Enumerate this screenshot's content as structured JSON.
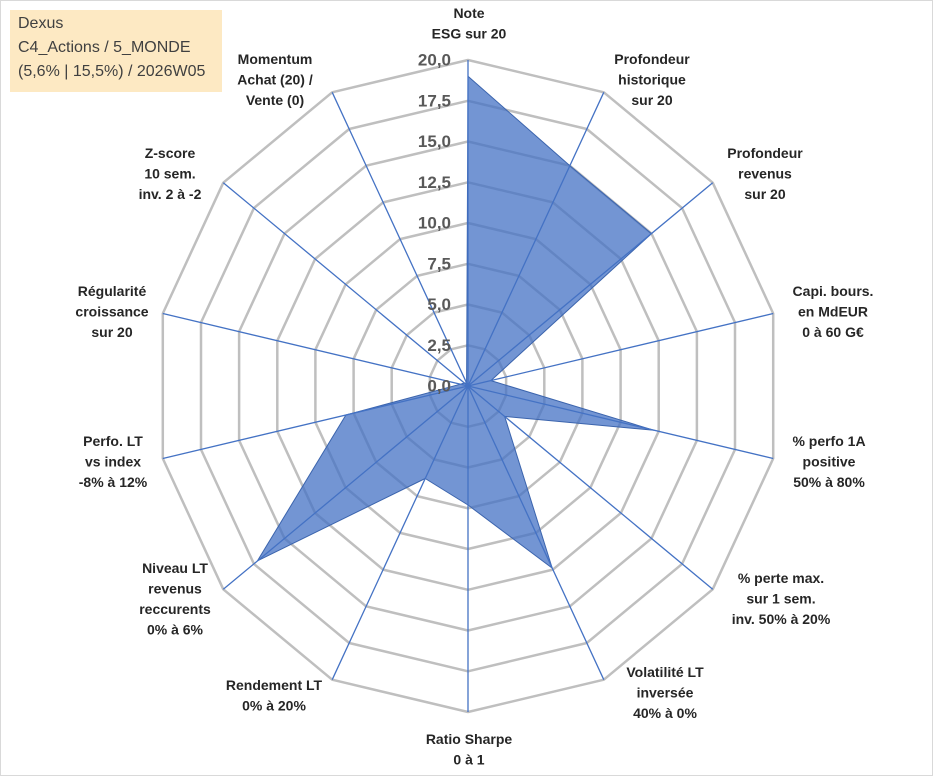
{
  "info_box": {
    "lines": [
      "Dexus",
      "C4_Actions / 5_MONDE",
      "(5,6% | 15,5%) / 2026W05"
    ],
    "background": "#fde9c3"
  },
  "chart_data": {
    "type": "radar",
    "categories": [
      [
        "Note",
        "ESG sur 20"
      ],
      [
        "Profondeur",
        "historique",
        "sur 20"
      ],
      [
        "Profondeur",
        "revenus",
        "sur 20"
      ],
      [
        "Capi. bours.",
        "en MdEUR",
        "0 à 60 G€"
      ],
      [
        "% perfo 1A",
        "positive",
        "50% à 80%"
      ],
      [
        "% perte max.",
        "sur 1 sem.",
        "inv. 50% à 20%"
      ],
      [
        "Volatilité LT",
        "inversée",
        "40% à 0%"
      ],
      [
        "Ratio Sharpe",
        "0 à 1"
      ],
      [
        "Rendement LT",
        "0% à 20%"
      ],
      [
        "Niveau LT",
        "revenus",
        "reccurents",
        "0% à 6%"
      ],
      [
        "Perfo. LT",
        "vs index",
        "-8% à 12%"
      ],
      [
        "Régularité",
        "croissance",
        "sur 20"
      ],
      [
        "Z-score",
        "10 sem.",
        "inv. 2 à -2"
      ],
      [
        "Momentum",
        "Achat (20) /",
        "Vente (0)"
      ]
    ],
    "series": [
      {
        "values": [
          19,
          15,
          15,
          1.5,
          12.2,
          3,
          12.4,
          7.3,
          6.3,
          17.2,
          8,
          0.5,
          0.3,
          0.2
        ]
      }
    ],
    "ylim": [
      0,
      20
    ],
    "tick_labels": [
      "0,0",
      "2,5",
      "5,0",
      "7,5",
      "10,0",
      "12,5",
      "15,0",
      "17,5",
      "20,0"
    ],
    "grid": true,
    "colors": {
      "fill": "#4472c4",
      "outline": "#3b64ad",
      "spokes": "#4472c4",
      "grid": "#bfbfbf",
      "tick_text": "#595959",
      "label_text": "#262626",
      "frame": "#d9d9d9"
    }
  }
}
